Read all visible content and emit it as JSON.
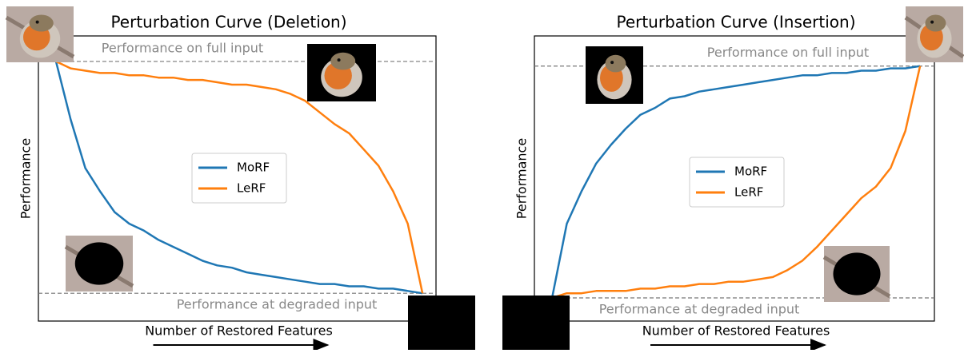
{
  "chart_data": [
    {
      "type": "line",
      "title": "Perturbation Curve (Deletion)",
      "xlabel": "Number of Restored Features",
      "ylabel": "Performance",
      "x": [
        0,
        4,
        8,
        12,
        16,
        20,
        24,
        28,
        32,
        36,
        40,
        44,
        48,
        52,
        56,
        60,
        64,
        68,
        72,
        76,
        80,
        84,
        88,
        92,
        96,
        100
      ],
      "series": [
        {
          "name": "MoRF",
          "color": "#1f77b4",
          "values": [
            1.0,
            0.75,
            0.54,
            0.44,
            0.35,
            0.3,
            0.27,
            0.23,
            0.2,
            0.17,
            0.14,
            0.12,
            0.11,
            0.09,
            0.08,
            0.07,
            0.06,
            0.05,
            0.04,
            0.04,
            0.03,
            0.03,
            0.02,
            0.02,
            0.01,
            0.0
          ]
        },
        {
          "name": "LeRF",
          "color": "#ff7f0e",
          "values": [
            1.0,
            0.97,
            0.96,
            0.95,
            0.95,
            0.94,
            0.94,
            0.93,
            0.93,
            0.92,
            0.92,
            0.91,
            0.9,
            0.9,
            0.89,
            0.88,
            0.86,
            0.83,
            0.78,
            0.73,
            0.69,
            0.62,
            0.55,
            0.44,
            0.3,
            0.0
          ]
        }
      ],
      "reference_lines": [
        {
          "value": 1,
          "label": "Performance on full input"
        },
        {
          "value": 0,
          "label": "Performance at degraded input"
        }
      ],
      "xlim": [
        -4.8,
        103.7
      ],
      "ylim": [
        -0.12,
        1.11
      ],
      "legend": "center"
    },
    {
      "type": "line",
      "title": "Perturbation Curve (Insertion)",
      "xlabel": "Number of Restored Features",
      "ylabel": "Performance",
      "x": [
        0,
        4,
        8,
        12,
        16,
        20,
        24,
        28,
        32,
        36,
        40,
        44,
        48,
        52,
        56,
        60,
        64,
        68,
        72,
        76,
        80,
        84,
        88,
        92,
        96,
        100
      ],
      "series": [
        {
          "name": "MoRF",
          "color": "#1f77b4",
          "values": [
            0.0,
            0.32,
            0.46,
            0.58,
            0.66,
            0.73,
            0.79,
            0.82,
            0.86,
            0.87,
            0.89,
            0.9,
            0.91,
            0.92,
            0.93,
            0.94,
            0.95,
            0.96,
            0.96,
            0.97,
            0.97,
            0.98,
            0.98,
            0.99,
            0.99,
            1.0
          ]
        },
        {
          "name": "LeRF",
          "color": "#ff7f0e",
          "values": [
            0.0,
            0.02,
            0.02,
            0.03,
            0.03,
            0.03,
            0.04,
            0.04,
            0.05,
            0.05,
            0.06,
            0.06,
            0.07,
            0.07,
            0.08,
            0.09,
            0.12,
            0.16,
            0.22,
            0.29,
            0.36,
            0.43,
            0.48,
            0.56,
            0.72,
            1.0
          ]
        }
      ],
      "reference_lines": [
        {
          "value": 1,
          "label": "Performance on full input"
        },
        {
          "value": 0,
          "label": "Performance at degraded input"
        }
      ],
      "xlim": [
        -4.8,
        103.9
      ],
      "ylim": [
        -0.1,
        1.13
      ],
      "legend": "center"
    }
  ]
}
